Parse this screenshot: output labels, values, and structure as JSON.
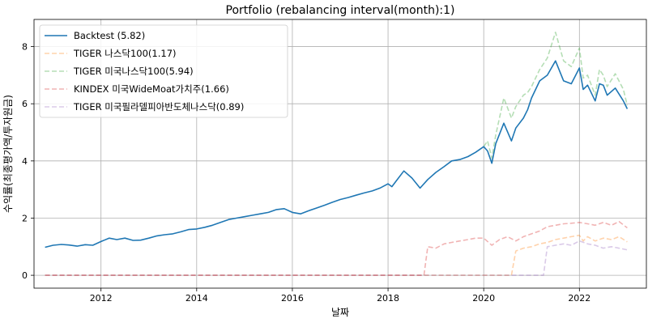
{
  "chart_data": {
    "type": "line",
    "title": "Portfolio (rebalancing interval(month):1)",
    "xlabel": "날짜",
    "ylabel": "수익률(최종평가액/투자원금)",
    "xlim": [
      2010.6,
      2023.4
    ],
    "ylim": [
      -0.45,
      8.95
    ],
    "xticks": [
      2012,
      2014,
      2016,
      2018,
      2020,
      2022
    ],
    "yticks": [
      0,
      2,
      4,
      6,
      8
    ],
    "grid": true,
    "legend_position": "top-left",
    "series": [
      {
        "name": "Backtest (5.82)",
        "color": "#1f77b4",
        "style": "solid",
        "opacity": 1,
        "x": [
          2010.83,
          2011.0,
          2011.17,
          2011.33,
          2011.5,
          2011.67,
          2011.83,
          2012.0,
          2012.17,
          2012.33,
          2012.5,
          2012.67,
          2012.83,
          2013.0,
          2013.17,
          2013.33,
          2013.5,
          2013.67,
          2013.83,
          2014.0,
          2014.17,
          2014.33,
          2014.5,
          2014.67,
          2014.83,
          2015.0,
          2015.17,
          2015.33,
          2015.5,
          2015.67,
          2015.83,
          2016.0,
          2016.17,
          2016.33,
          2016.5,
          2016.67,
          2016.83,
          2017.0,
          2017.17,
          2017.33,
          2017.5,
          2017.67,
          2017.83,
          2018.0,
          2018.08,
          2018.17,
          2018.33,
          2018.5,
          2018.67,
          2018.83,
          2019.0,
          2019.17,
          2019.33,
          2019.5,
          2019.67,
          2019.83,
          2020.0,
          2020.08,
          2020.17,
          2020.25,
          2020.42,
          2020.58,
          2020.67,
          2020.83,
          2020.92,
          2021.0,
          2021.17,
          2021.33,
          2021.5,
          2021.67,
          2021.83,
          2022.0,
          2022.08,
          2022.17,
          2022.33,
          2022.42,
          2022.5,
          2022.58,
          2022.75,
          2022.92,
          2023.0
        ],
        "y": [
          0.98,
          1.05,
          1.08,
          1.06,
          1.02,
          1.07,
          1.05,
          1.18,
          1.3,
          1.25,
          1.3,
          1.22,
          1.23,
          1.3,
          1.38,
          1.42,
          1.45,
          1.52,
          1.6,
          1.62,
          1.68,
          1.75,
          1.85,
          1.95,
          2.0,
          2.05,
          2.1,
          2.15,
          2.2,
          2.3,
          2.33,
          2.2,
          2.15,
          2.25,
          2.35,
          2.45,
          2.55,
          2.65,
          2.72,
          2.8,
          2.88,
          2.95,
          3.05,
          3.2,
          3.1,
          3.3,
          3.65,
          3.4,
          3.05,
          3.35,
          3.6,
          3.8,
          4.0,
          4.05,
          4.15,
          4.3,
          4.5,
          4.35,
          3.92,
          4.6,
          5.32,
          4.7,
          5.15,
          5.5,
          5.8,
          6.2,
          6.8,
          7.0,
          7.5,
          6.8,
          6.7,
          7.25,
          6.5,
          6.65,
          6.1,
          6.7,
          6.65,
          6.3,
          6.55,
          6.1,
          5.82
        ]
      },
      {
        "name": "TIGER 나스닥100(1.17)",
        "color": "#ff7f0e",
        "style": "dashed",
        "opacity": 0.35,
        "x": [
          2010.83,
          2020.58,
          2020.67,
          2020.83,
          2021.0,
          2021.17,
          2021.33,
          2021.5,
          2021.67,
          2021.83,
          2022.0,
          2022.08,
          2022.17,
          2022.33,
          2022.5,
          2022.67,
          2022.83,
          2023.0
        ],
        "y": [
          0,
          0,
          0.85,
          0.95,
          1.0,
          1.1,
          1.15,
          1.25,
          1.3,
          1.35,
          1.4,
          1.2,
          1.35,
          1.2,
          1.3,
          1.25,
          1.35,
          1.17
        ]
      },
      {
        "name": "TIGER 미국나스닥100(5.94)",
        "color": "#2ca02c",
        "style": "dashed",
        "opacity": 0.35,
        "x": [
          2020.0,
          2020.08,
          2020.17,
          2020.25,
          2020.42,
          2020.58,
          2020.67,
          2020.83,
          2020.92,
          2021.0,
          2021.17,
          2021.33,
          2021.5,
          2021.67,
          2021.83,
          2022.0,
          2022.08,
          2022.17,
          2022.33,
          2022.42,
          2022.5,
          2022.58,
          2022.75,
          2022.92,
          2023.0
        ],
        "y": [
          4.5,
          4.7,
          4.1,
          4.9,
          6.2,
          5.5,
          5.9,
          6.3,
          6.4,
          6.6,
          7.2,
          7.6,
          8.5,
          7.5,
          7.3,
          7.95,
          6.9,
          7.0,
          6.3,
          7.2,
          7.0,
          6.6,
          7.05,
          6.5,
          5.94
        ]
      },
      {
        "name": "KINDEX 미국WideMoat가치주(1.66)",
        "color": "#d62728",
        "style": "dashed",
        "opacity": 0.35,
        "x": [
          2010.83,
          2018.75,
          2018.83,
          2019.0,
          2019.17,
          2019.33,
          2019.5,
          2019.67,
          2019.83,
          2020.0,
          2020.17,
          2020.33,
          2020.5,
          2020.67,
          2020.83,
          2021.0,
          2021.17,
          2021.33,
          2021.5,
          2021.67,
          2021.83,
          2022.0,
          2022.17,
          2022.33,
          2022.5,
          2022.67,
          2022.83,
          2023.0
        ],
        "y": [
          0,
          0,
          1.0,
          0.95,
          1.1,
          1.15,
          1.2,
          1.25,
          1.3,
          1.3,
          1.05,
          1.25,
          1.35,
          1.2,
          1.35,
          1.45,
          1.55,
          1.7,
          1.75,
          1.8,
          1.82,
          1.85,
          1.8,
          1.75,
          1.85,
          1.75,
          1.88,
          1.66
        ]
      },
      {
        "name": "TIGER 미국필라델피아반도체나스닥(0.89)",
        "color": "#9467bd",
        "style": "dashed",
        "opacity": 0.35,
        "x": [
          2010.83,
          2021.25,
          2021.33,
          2021.5,
          2021.67,
          2021.83,
          2022.0,
          2022.17,
          2022.33,
          2022.5,
          2022.67,
          2022.83,
          2023.0
        ],
        "y": [
          0,
          0,
          1.0,
          1.05,
          1.1,
          1.05,
          1.2,
          1.1,
          1.05,
          0.95,
          1.0,
          0.95,
          0.89
        ]
      }
    ]
  }
}
